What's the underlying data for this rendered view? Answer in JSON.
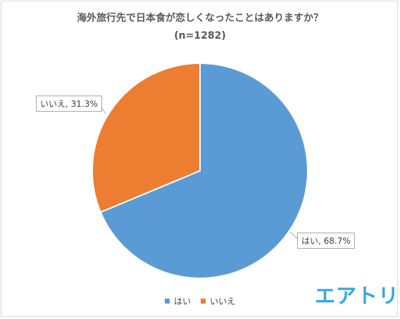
{
  "chart_data": {
    "type": "pie",
    "title": "海外旅行先で日本食が恋しくなったことはありますか？",
    "subtitle": "(n=1282)",
    "categories": [
      "はい",
      "いいえ"
    ],
    "values": [
      68.7,
      31.3
    ],
    "data_labels": [
      "はい, 68.7%",
      "いいえ, 31.3%"
    ],
    "colors": [
      "#5b9bd5",
      "#ed7d31"
    ],
    "legend_position": "bottom"
  },
  "logo": {
    "text": "エアトリ",
    "color": "#35a8e0"
  }
}
